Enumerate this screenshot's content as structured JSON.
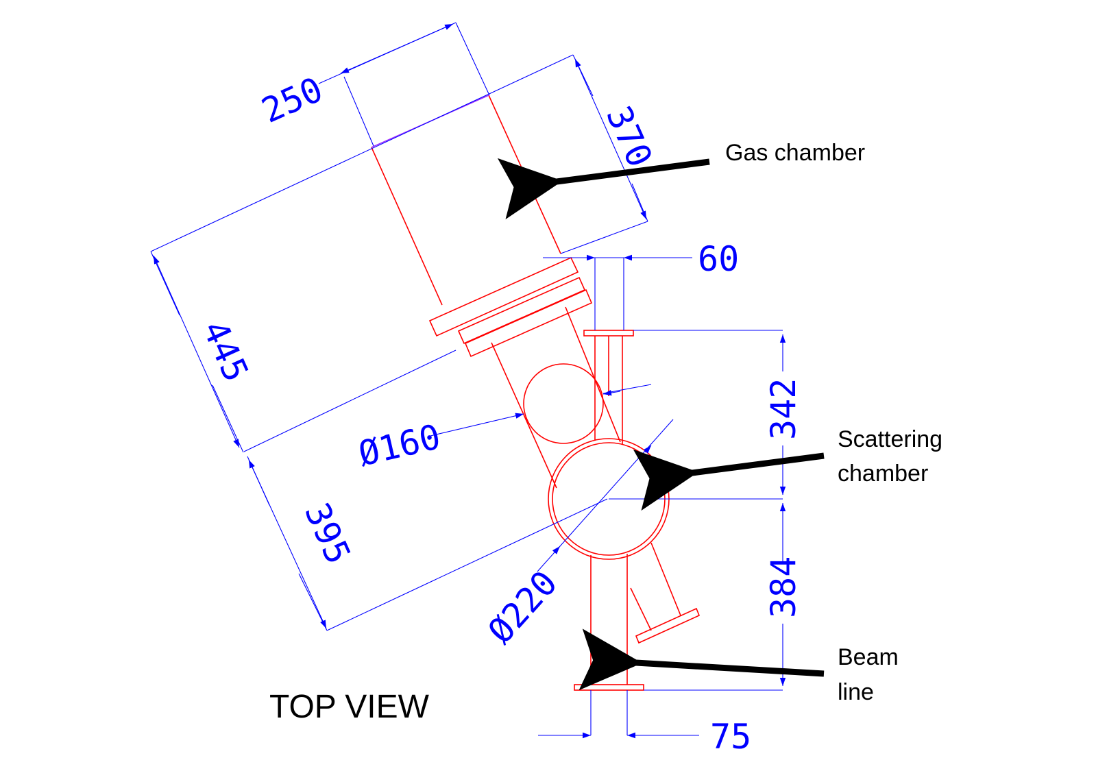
{
  "colors": {
    "part": "#ff0000",
    "dimension": "#0000ff",
    "annotation": "#000000",
    "background": "#ffffff"
  },
  "dimensions": {
    "gas_chamber_width": "250",
    "gas_chamber_length": "370",
    "flange_offset": "60",
    "upper_section_length": "445",
    "lower_section_length": "395",
    "inlet_diameter": "Ø160",
    "scattering_chamber_diameter": "Ø220",
    "upper_beamline_height": "342",
    "lower_beamline_height": "384",
    "beamline_width": "75"
  },
  "labels": {
    "gas_chamber": "Gas chamber",
    "scattering_chamber_line1": "Scattering",
    "scattering_chamber_line2": "chamber",
    "beam_line_line1": "Beam",
    "beam_line_line2": "line",
    "view_title": "TOP VIEW"
  }
}
